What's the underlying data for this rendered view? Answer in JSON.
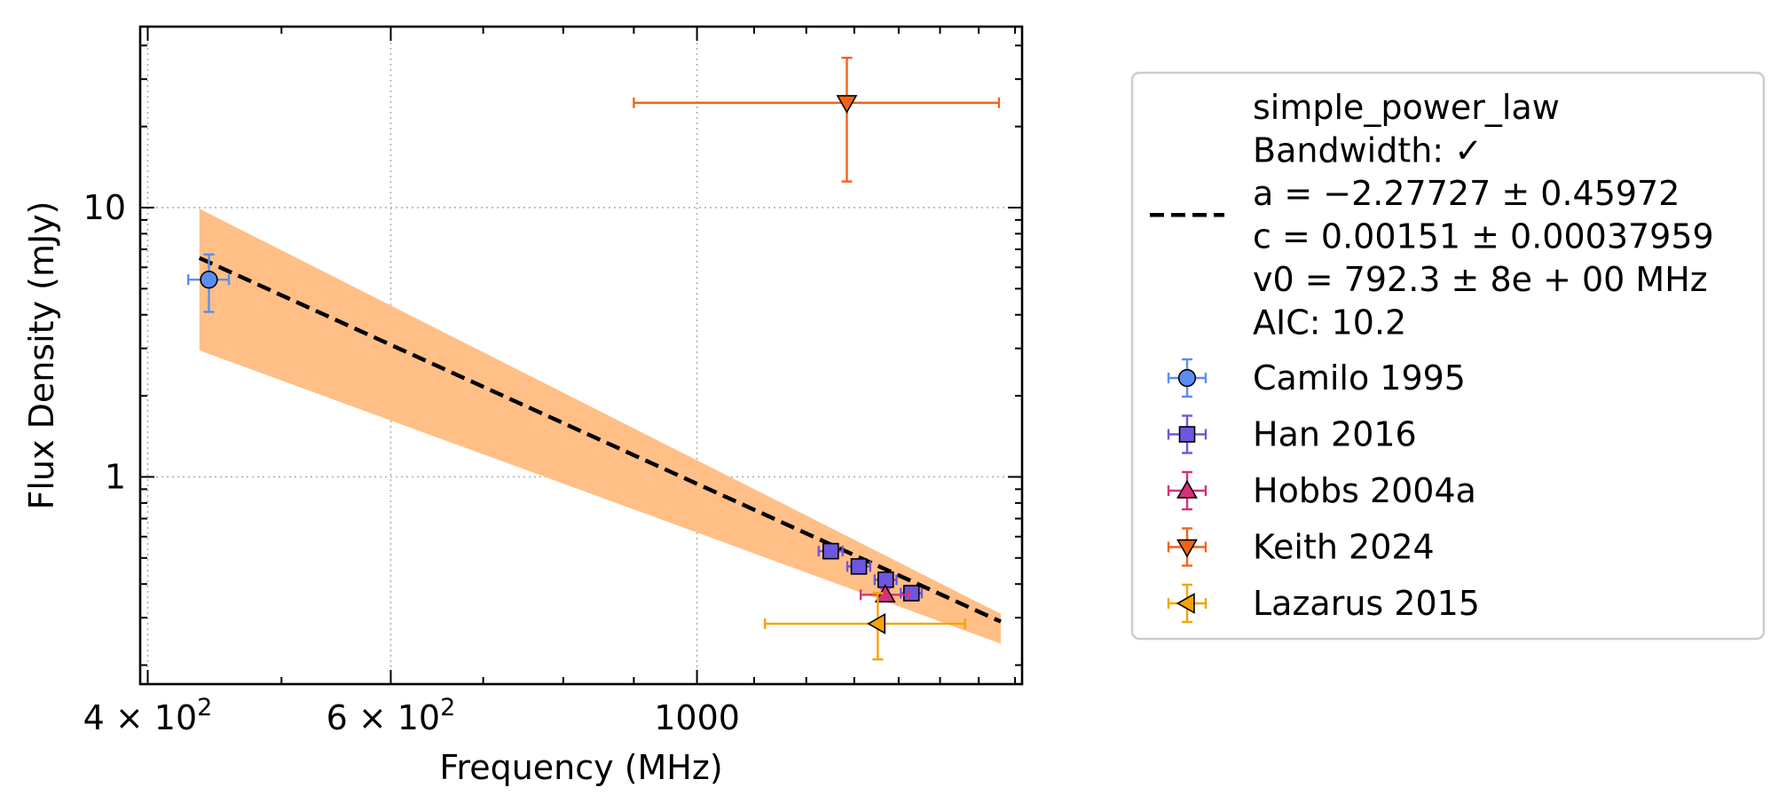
{
  "chart_data": {
    "type": "scatter",
    "xlabel": "Frequency (MHz)",
    "ylabel": "Flux Density (mJy)",
    "xscale": "log",
    "yscale": "log",
    "xlim": [
      395,
      1720
    ],
    "ylim": [
      0.17,
      47
    ],
    "grid": true,
    "legend_position": "outside-right",
    "x_ticks": [
      {
        "value": 400,
        "label_base": "4 × 10",
        "label_exp": "2"
      },
      {
        "value": 600,
        "label_base": "6 × 10",
        "label_exp": "2"
      },
      {
        "value": 1000,
        "label_base": "1000",
        "label_exp": ""
      }
    ],
    "y_ticks": [
      {
        "value": 1,
        "label": "1"
      },
      {
        "value": 10,
        "label": "10"
      }
    ],
    "fit": {
      "name": "simple_power_law",
      "line_color": "#000000",
      "band_color": "#ffbf86",
      "legend_lines": [
        "simple_power_law",
        "Bandwidth: ✓",
        "a = −2.27727 ± 0.45972",
        "c = 0.00151 ± 0.00037959",
        "v0 = 792.3 ± 8e + 00 MHz",
        "AIC: 10.2"
      ],
      "x": [
        436,
        1660
      ],
      "y": [
        6.5,
        0.29
      ],
      "band_upper": [
        9.9,
        0.31
      ],
      "band_lower": [
        2.95,
        0.24
      ]
    },
    "series": [
      {
        "name": "Camilo 1995",
        "marker": "circle",
        "color": "#5b8df0",
        "points": [
          {
            "x": 443,
            "y": 5.4,
            "xerr": [
              15,
              15
            ],
            "yerr": [
              1.3,
              1.3
            ]
          }
        ]
      },
      {
        "name": "Han 2016",
        "marker": "square",
        "color": "#6c57e0",
        "points": [
          {
            "x": 1250,
            "y": 0.53,
            "xerr": [
              25,
              25
            ],
            "yerr": [
              0.02,
              0.02
            ]
          },
          {
            "x": 1310,
            "y": 0.465,
            "xerr": [
              25,
              25
            ],
            "yerr": [
              0.02,
              0.02
            ]
          },
          {
            "x": 1370,
            "y": 0.415,
            "xerr": [
              25,
              25
            ],
            "yerr": [
              0.02,
              0.02
            ]
          },
          {
            "x": 1430,
            "y": 0.37,
            "xerr": [
              25,
              25
            ],
            "yerr": [
              0.02,
              0.02
            ]
          }
        ]
      },
      {
        "name": "Hobbs 2004a",
        "marker": "triangle-up",
        "color": "#d6317a",
        "points": [
          {
            "x": 1369,
            "y": 0.365,
            "xerr": [
              55,
              55
            ],
            "yerr": [
              0.02,
              0.02
            ]
          }
        ]
      },
      {
        "name": "Keith 2024",
        "marker": "triangle-down",
        "color": "#f06418",
        "points": [
          {
            "x": 1284,
            "y": 24.5,
            "xerr": [
              384,
              371
            ],
            "yerr": [
              12,
              11.5
            ]
          }
        ]
      },
      {
        "name": "Lazarus 2015",
        "marker": "triangle-left",
        "color": "#f5a400",
        "points": [
          {
            "x": 1352,
            "y": 0.285,
            "xerr": [
              232,
              212
            ],
            "yerr": [
              0.075,
              0.085
            ]
          }
        ]
      }
    ]
  }
}
